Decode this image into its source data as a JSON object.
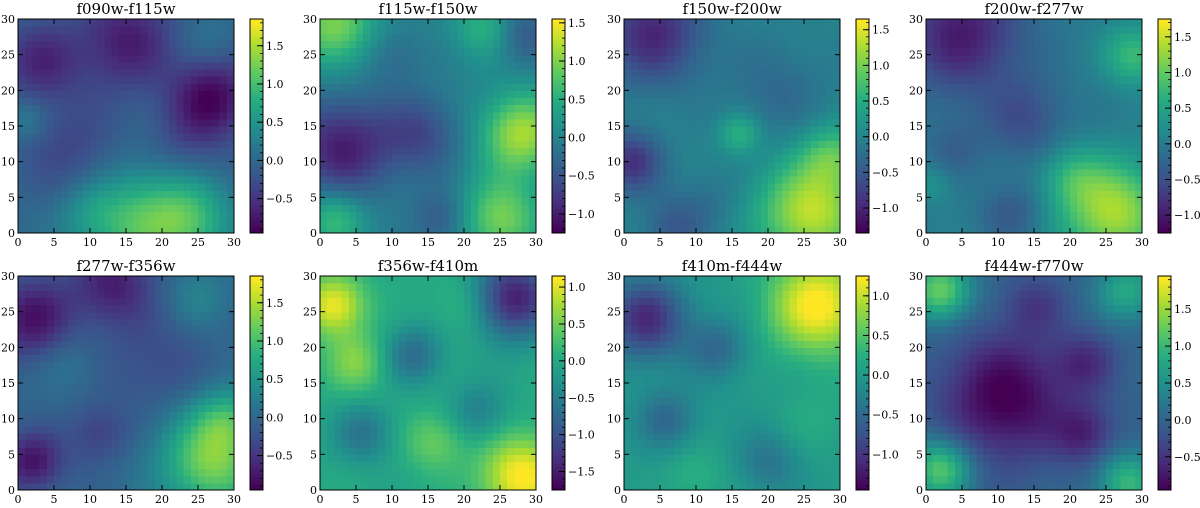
{
  "chart_data": [
    {
      "type": "heatmap",
      "title": "f090w-f115w",
      "x_ticks": [
        0,
        5,
        10,
        15,
        20,
        25,
        30
      ],
      "y_ticks": [
        0,
        5,
        10,
        15,
        20,
        25,
        30
      ],
      "xlim": [
        0,
        30
      ],
      "ylim": [
        0,
        30
      ],
      "colorbar_range": [
        -0.95,
        1.85
      ],
      "colorbar_ticks": [
        -0.5,
        0.0,
        0.5,
        1.0,
        1.5
      ],
      "colormap": "viridis",
      "blobs": [
        [
          17,
          1.5,
          6,
          1.0
        ],
        [
          24,
          2,
          4,
          0.7
        ],
        [
          10,
          3,
          3,
          0.3
        ],
        [
          3,
          24,
          4,
          -0.6
        ],
        [
          15,
          27,
          5,
          -0.7
        ],
        [
          27,
          19,
          4,
          -0.9
        ],
        [
          23,
          12,
          4,
          -0.3
        ],
        [
          8,
          11,
          5,
          -0.4
        ],
        [
          26,
          27,
          3,
          0.2
        ],
        [
          1,
          16,
          2,
          0.3
        ]
      ]
    },
    {
      "type": "heatmap",
      "title": "f115w-f150w",
      "x_ticks": [
        0,
        5,
        10,
        15,
        20,
        25,
        30
      ],
      "y_ticks": [
        0,
        5,
        10,
        15,
        20,
        25,
        30
      ],
      "xlim": [
        0,
        30
      ],
      "ylim": [
        0,
        30
      ],
      "colorbar_range": [
        -1.25,
        1.55
      ],
      "colorbar_ticks": [
        -1.0,
        -0.5,
        0.0,
        0.5,
        1.0,
        1.5
      ],
      "colormap": "viridis",
      "blobs": [
        [
          28,
          14,
          4,
          1.2
        ],
        [
          2,
          29,
          4,
          1.0
        ],
        [
          25,
          2,
          4,
          1.0
        ],
        [
          2,
          2,
          3,
          0.7
        ],
        [
          23,
          29,
          3,
          0.6
        ],
        [
          3,
          12,
          5,
          -1.0
        ],
        [
          14,
          14,
          4,
          -0.6
        ],
        [
          17,
          2,
          3,
          -0.5
        ],
        [
          28,
          28,
          3,
          -0.5
        ],
        [
          10,
          25,
          3,
          -0.3
        ]
      ]
    },
    {
      "type": "heatmap",
      "title": "f150w-f200w",
      "x_ticks": [
        0,
        5,
        10,
        15,
        20,
        25,
        30
      ],
      "y_ticks": [
        0,
        5,
        10,
        15,
        20,
        25,
        30
      ],
      "xlim": [
        0,
        30
      ],
      "ylim": [
        0,
        30
      ],
      "colorbar_range": [
        -1.35,
        1.65
      ],
      "colorbar_ticks": [
        -1.0,
        -0.5,
        0.0,
        0.5,
        1.0,
        1.5
      ],
      "colormap": "viridis",
      "blobs": [
        [
          26,
          3,
          5,
          1.4
        ],
        [
          29,
          11,
          3,
          0.7
        ],
        [
          16,
          14,
          2,
          0.6
        ],
        [
          4,
          28,
          5,
          -1.0
        ],
        [
          1,
          10,
          3,
          -0.9
        ],
        [
          7,
          1,
          3,
          -0.5
        ],
        [
          21,
          20,
          5,
          -0.3
        ],
        [
          12,
          5,
          3,
          -0.2
        ]
      ]
    },
    {
      "type": "heatmap",
      "title": "f200w-f277w",
      "x_ticks": [
        0,
        5,
        10,
        15,
        20,
        25,
        30
      ],
      "y_ticks": [
        0,
        5,
        10,
        15,
        20,
        25,
        30
      ],
      "xlim": [
        0,
        30
      ],
      "ylim": [
        0,
        30
      ],
      "colorbar_range": [
        -1.25,
        1.75
      ],
      "colorbar_ticks": [
        -1.0,
        -0.5,
        0.0,
        0.5,
        1.0,
        1.5
      ],
      "colormap": "viridis",
      "blobs": [
        [
          26,
          3,
          5,
          1.4
        ],
        [
          20,
          8,
          3,
          0.5
        ],
        [
          29,
          25,
          3,
          0.8
        ],
        [
          5,
          28,
          6,
          -1.0
        ],
        [
          14,
          16,
          4,
          -0.5
        ],
        [
          4,
          12,
          3,
          -0.3
        ],
        [
          12,
          3,
          3,
          -0.4
        ],
        [
          1,
          7,
          2,
          0.3
        ]
      ]
    },
    {
      "type": "heatmap",
      "title": "f277w-f356w",
      "x_ticks": [
        0,
        5,
        10,
        15,
        20,
        25,
        30
      ],
      "y_ticks": [
        0,
        5,
        10,
        15,
        20,
        25,
        30
      ],
      "xlim": [
        0,
        30
      ],
      "ylim": [
        0,
        30
      ],
      "colorbar_range": [
        -0.95,
        1.85
      ],
      "colorbar_ticks": [
        -0.5,
        0.0,
        0.5,
        1.0,
        1.5
      ],
      "colormap": "viridis",
      "blobs": [
        [
          27,
          4,
          5,
          1.3
        ],
        [
          29,
          10,
          3,
          0.6
        ],
        [
          2,
          24,
          4,
          -0.8
        ],
        [
          2,
          4,
          3,
          -0.8
        ],
        [
          13,
          29,
          4,
          -0.7
        ],
        [
          19,
          18,
          5,
          -0.3
        ],
        [
          11,
          8,
          3,
          -0.4
        ],
        [
          25,
          27,
          3,
          0.3
        ],
        [
          7,
          18,
          3,
          0.2
        ]
      ]
    },
    {
      "type": "heatmap",
      "title": "f356w-f410m",
      "x_ticks": [
        0,
        5,
        10,
        15,
        20,
        25,
        30
      ],
      "y_ticks": [
        0,
        5,
        10,
        15,
        20,
        25,
        30
      ],
      "xlim": [
        0,
        30
      ],
      "ylim": [
        0,
        30
      ],
      "colorbar_range": [
        -1.75,
        1.15
      ],
      "colorbar_ticks": [
        -1.5,
        -1.0,
        -0.5,
        0.0,
        0.5,
        1.0
      ],
      "colormap": "viridis",
      "blobs": [
        [
          2,
          26,
          3,
          1.1
        ],
        [
          5,
          18,
          3,
          0.6
        ],
        [
          28,
          2,
          4,
          1.2
        ],
        [
          16,
          7,
          3,
          0.5
        ],
        [
          27,
          27,
          4,
          -1.5
        ],
        [
          13,
          19,
          3,
          -0.7
        ],
        [
          6,
          8,
          3,
          -0.6
        ],
        [
          22,
          11,
          3,
          -0.5
        ],
        [
          20,
          26,
          3,
          0.3
        ]
      ]
    },
    {
      "type": "heatmap",
      "title": "f410m-f444w",
      "x_ticks": [
        0,
        5,
        10,
        15,
        20,
        25,
        30
      ],
      "y_ticks": [
        0,
        5,
        10,
        15,
        20,
        25,
        30
      ],
      "xlim": [
        0,
        30
      ],
      "ylim": [
        0,
        30
      ],
      "colorbar_range": [
        -1.45,
        1.25
      ],
      "colorbar_ticks": [
        -1.0,
        -0.5,
        0.0,
        0.5,
        1.0
      ],
      "colormap": "viridis",
      "blobs": [
        [
          27,
          26,
          5,
          1.3
        ],
        [
          3,
          24,
          4,
          -1.1
        ],
        [
          13,
          20,
          3,
          -0.5
        ],
        [
          6,
          10,
          3,
          -0.5
        ],
        [
          20,
          4,
          3,
          -0.4
        ],
        [
          10,
          2,
          3,
          0.3
        ],
        [
          27,
          10,
          4,
          0.2
        ]
      ]
    },
    {
      "type": "heatmap",
      "title": "f444w-f770w",
      "x_ticks": [
        0,
        5,
        10,
        15,
        20,
        25,
        30
      ],
      "y_ticks": [
        0,
        5,
        10,
        15,
        20,
        25,
        30
      ],
      "xlim": [
        0,
        30
      ],
      "ylim": [
        0,
        30
      ],
      "colorbar_range": [
        -0.95,
        1.95
      ],
      "colorbar_ticks": [
        -0.5,
        0.0,
        0.5,
        1.0,
        1.5
      ],
      "colormap": "viridis",
      "blobs": [
        [
          2,
          28,
          3,
          1.3
        ],
        [
          2,
          3,
          3,
          1.2
        ],
        [
          28,
          1,
          3,
          1.0
        ],
        [
          28,
          28,
          3,
          0.8
        ],
        [
          11,
          13,
          6,
          -1.0
        ],
        [
          22,
          8,
          3,
          -0.6
        ],
        [
          22,
          18,
          3,
          -0.5
        ],
        [
          15,
          26,
          3,
          -0.4
        ]
      ]
    }
  ]
}
